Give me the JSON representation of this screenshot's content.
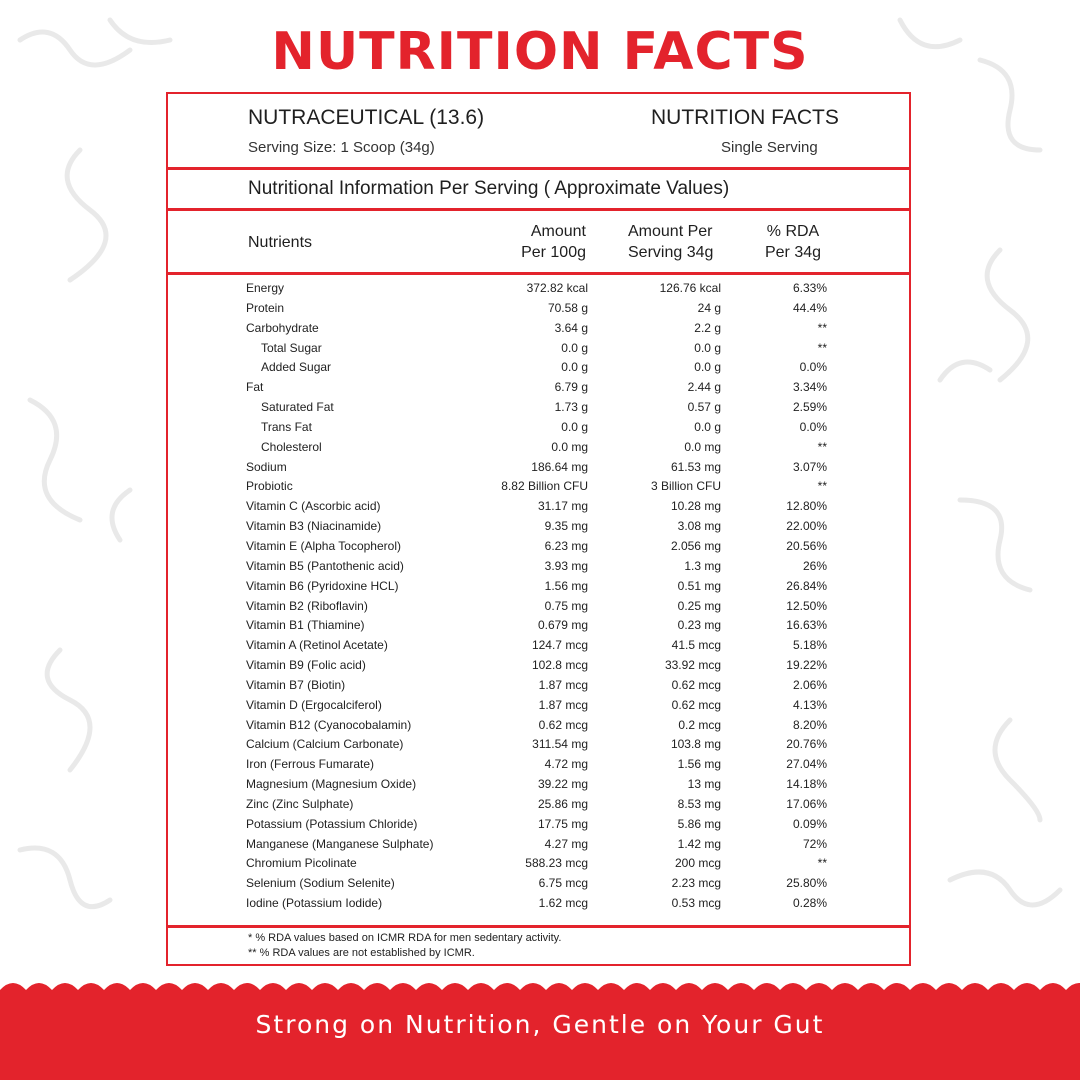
{
  "headline": "NUTRITION FACTS",
  "panel": {
    "product_name": "NUTRACEUTICAL (13.6)",
    "serving_size": "Serving Size: 1 Scoop (34g)",
    "facts_title": "NUTRITION FACTS",
    "serving_type": "Single Serving",
    "section_title": "Nutritional Information Per Serving ( Approximate Values)",
    "columns": {
      "nutrients": "Nutrients",
      "per100_line1": "Amount",
      "per100_line2": "Per 100g",
      "serving_line1": "Amount Per",
      "serving_line2": "Serving 34g",
      "rda_line1": "% RDA",
      "rda_line2": "Per 34g"
    },
    "rows": [
      {
        "name": "Energy",
        "per100g": "372.82 kcal",
        "serving": "126.76 kcal",
        "rda": "6.33%"
      },
      {
        "name": "Protein",
        "per100g": "70.58 g",
        "serving": "24 g",
        "rda": "44.4%"
      },
      {
        "name": "Carbohydrate",
        "per100g": "3.64 g",
        "serving": "2.2 g",
        "rda": "**"
      },
      {
        "name": "Total Sugar",
        "per100g": "0.0 g",
        "serving": "0.0 g",
        "rda": "**"
      },
      {
        "name": "Added Sugar",
        "per100g": "0.0 g",
        "serving": "0.0 g",
        "rda": "0.0%"
      },
      {
        "name": "Fat",
        "per100g": "6.79 g",
        "serving": "2.44 g",
        "rda": "3.34%"
      },
      {
        "name": "Saturated Fat",
        "per100g": "1.73 g",
        "serving": "0.57 g",
        "rda": "2.59%"
      },
      {
        "name": "Trans Fat",
        "per100g": "0.0 g",
        "serving": "0.0 g",
        "rda": "0.0%"
      },
      {
        "name": "Cholesterol",
        "per100g": "0.0 mg",
        "serving": "0.0 mg",
        "rda": "**"
      },
      {
        "name": "Sodium",
        "per100g": "186.64 mg",
        "serving": "61.53 mg",
        "rda": "3.07%"
      },
      {
        "name": "Probiotic",
        "per100g": "8.82 Billion CFU",
        "serving": "3 Billion CFU",
        "rda": "**"
      },
      {
        "name": "Vitamin C (Ascorbic acid)",
        "per100g": "31.17 mg",
        "serving": "10.28 mg",
        "rda": "12.80%"
      },
      {
        "name": "Vitamin B3 (Niacinamide)",
        "per100g": "9.35 mg",
        "serving": "3.08 mg",
        "rda": "22.00%"
      },
      {
        "name": "Vitamin E (Alpha Tocopherol)",
        "per100g": "6.23 mg",
        "serving": "2.056 mg",
        "rda": "20.56%"
      },
      {
        "name": "Vitamin B5 (Pantothenic acid)",
        "per100g": "3.93 mg",
        "serving": "1.3 mg",
        "rda": "26%"
      },
      {
        "name": "Vitamin B6 (Pyridoxine HCL)",
        "per100g": "1.56 mg",
        "serving": "0.51 mg",
        "rda": "26.84%"
      },
      {
        "name": "Vitamin B2 (Riboflavin)",
        "per100g": "0.75 mg",
        "serving": "0.25 mg",
        "rda": "12.50%"
      },
      {
        "name": "Vitamin B1 (Thiamine)",
        "per100g": "0.679 mg",
        "serving": "0.23 mg",
        "rda": "16.63%"
      },
      {
        "name": "Vitamin A (Retinol Acetate)",
        "per100g": "124.7 mcg",
        "serving": "41.5 mcg",
        "rda": "5.18%"
      },
      {
        "name": "Vitamin B9 (Folic acid)",
        "per100g": "102.8 mcg",
        "serving": "33.92 mcg",
        "rda": "19.22%"
      },
      {
        "name": "Vitamin B7 (Biotin)",
        "per100g": "1.87 mcg",
        "serving": "0.62 mcg",
        "rda": "2.06%"
      },
      {
        "name": "Vitamin D (Ergocalciferol)",
        "per100g": "1.87 mcg",
        "serving": "0.62 mcg",
        "rda": "4.13%"
      },
      {
        "name": "Vitamin B12 (Cyanocobalamin)",
        "per100g": "0.62 mcg",
        "serving": "0.2 mcg",
        "rda": "8.20%"
      },
      {
        "name": "Calcium (Calcium Carbonate)",
        "per100g": "311.54 mg",
        "serving": "103.8 mg",
        "rda": "20.76%"
      },
      {
        "name": "Iron (Ferrous Fumarate)",
        "per100g": "4.72 mg",
        "serving": "1.56 mg",
        "rda": "27.04%"
      },
      {
        "name": "Magnesium (Magnesium Oxide)",
        "per100g": "39.22 mg",
        "serving": "13 mg",
        "rda": "14.18%"
      },
      {
        "name": "Zinc (Zinc Sulphate)",
        "per100g": "25.86 mg",
        "serving": "8.53 mg",
        "rda": "17.06%"
      },
      {
        "name": "Potassium (Potassium Chloride)",
        "per100g": "17.75 mg",
        "serving": "5.86 mg",
        "rda": "0.09%"
      },
      {
        "name": "Manganese (Manganese Sulphate)",
        "per100g": "4.27 mg",
        "serving": "1.42 mg",
        "rda": "72%"
      },
      {
        "name": "Chromium Picolinate",
        "per100g": "588.23 mcg",
        "serving": "200 mcg",
        "rda": "**"
      },
      {
        "name": "Selenium (Sodium Selenite)",
        "per100g": "6.75 mcg",
        "serving": "2.23 mcg",
        "rda": "25.80%"
      },
      {
        "name": "Iodine (Potassium Iodide)",
        "per100g": "1.62 mcg",
        "serving": "0.53 mcg",
        "rda": "0.28%"
      }
    ],
    "footnote1": "* % RDA values based on ICMR RDA for men sedentary activity.",
    "footnote2": "** % RDA values are not established by ICMR."
  },
  "tagline": "Strong on Nutrition, Gentle on Your Gut",
  "colors": {
    "accent": "#e3232c",
    "background": "#ffffff",
    "text": "#222222"
  }
}
